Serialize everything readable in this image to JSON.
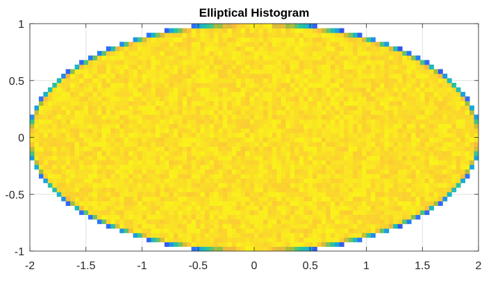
{
  "chart_data": {
    "type": "heatmap",
    "title": "Elliptical Histogram",
    "xlabel": "",
    "ylabel": "",
    "xlim": [
      -2,
      2
    ],
    "ylim": [
      -1,
      1
    ],
    "xticks": [
      -2,
      -1.5,
      -1,
      -0.5,
      0,
      0.5,
      1,
      1.5,
      2
    ],
    "xtick_labels": [
      "-2",
      "-1.5",
      "-1",
      "-0.5",
      "0",
      "0.5",
      "1",
      "1.5",
      "2"
    ],
    "yticks": [
      1,
      0.5,
      0,
      -0.5,
      -1
    ],
    "ytick_labels": [
      "1",
      "0.5",
      "0",
      "-0.5",
      "-1"
    ],
    "grid": true,
    "bins": [
      100,
      50
    ],
    "ellipse": {
      "semi_axis_x": 2,
      "semi_axis_y": 1
    },
    "colormap": "parula",
    "colormap_stops": [
      "#3e26a8",
      "#2f6bfe",
      "#13b3d2",
      "#2fc595",
      "#a8bd3a",
      "#fcba3d",
      "#f9fb15"
    ],
    "interior_level": 0.93,
    "edge_level": 0.1
  }
}
